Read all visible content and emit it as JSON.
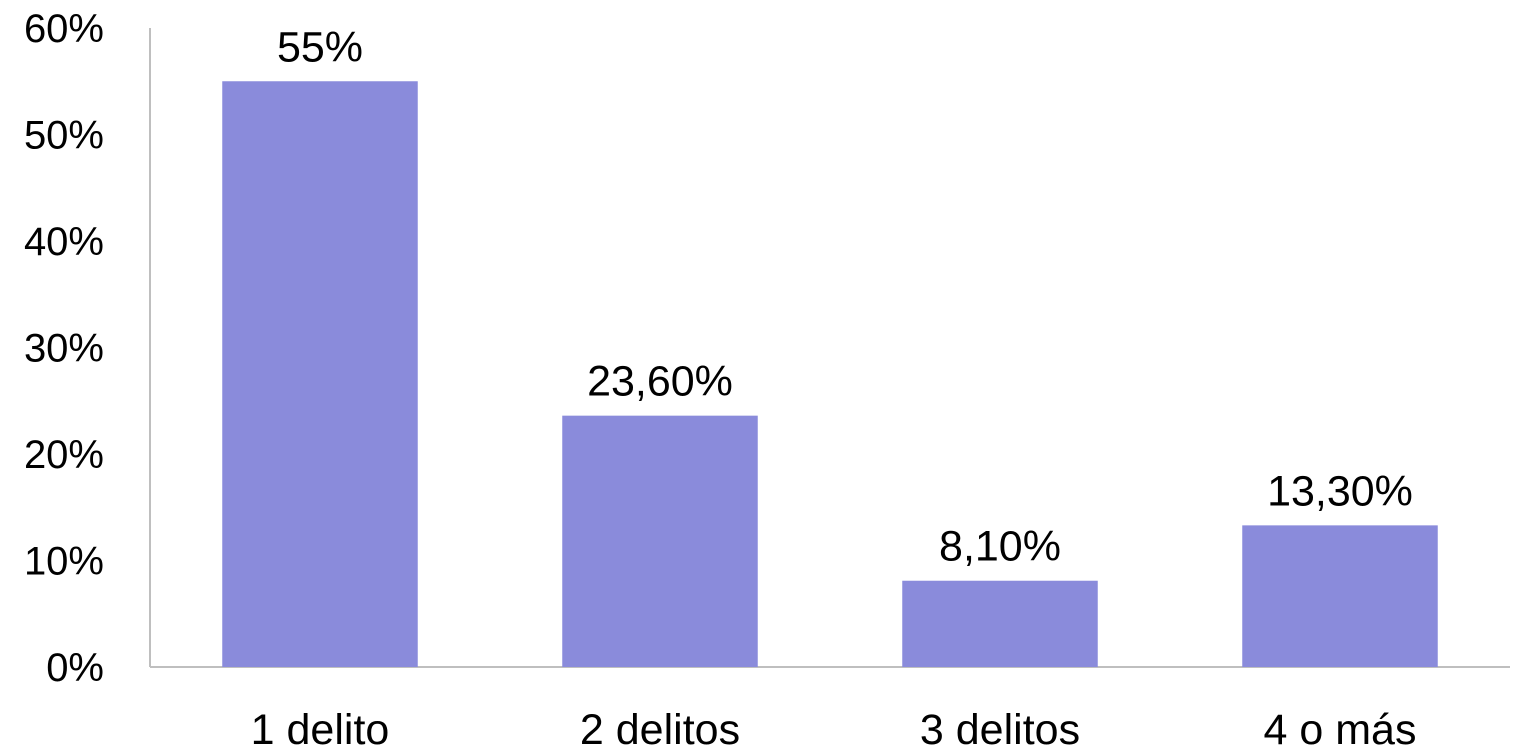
{
  "chart_data": {
    "type": "bar",
    "categories": [
      "1 delito",
      "2 delitos",
      "3 delitos",
      "4 o más"
    ],
    "values": [
      55,
      23.6,
      8.1,
      13.3
    ],
    "data_labels": [
      "55%",
      "23,60%",
      "8,10%",
      "13,30%"
    ],
    "ylim": [
      0,
      60
    ],
    "y_ticks": [
      0,
      10,
      20,
      30,
      40,
      50,
      60
    ],
    "y_tick_labels": [
      "0%",
      "10%",
      "20%",
      "30%",
      "40%",
      "50%",
      "60%"
    ],
    "title": "",
    "xlabel": "",
    "ylabel": "",
    "grid": false,
    "legend": "none",
    "bar_color": "#8a8bdb"
  }
}
